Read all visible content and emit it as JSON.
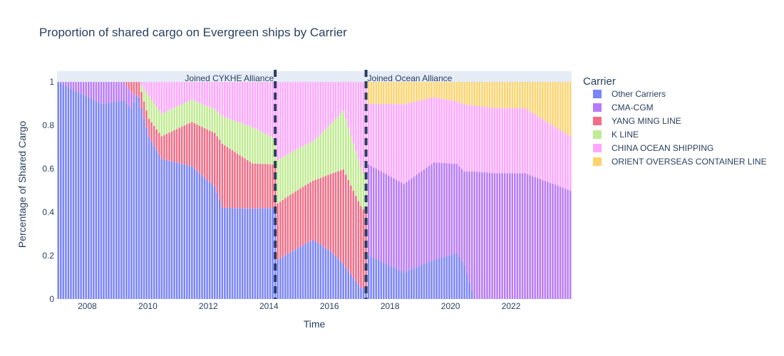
{
  "chart_data": {
    "type": "bar",
    "stacked": true,
    "title": "Proportion of shared cargo on Evergreen ships by Carrier",
    "xlabel": "Time",
    "ylabel": "Percentage of Shared Cargo",
    "xlim": [
      "2007-01",
      "2023-12"
    ],
    "ylim": [
      0,
      1.05
    ],
    "x_ticks": [
      "2008",
      "2010",
      "2012",
      "2014",
      "2016",
      "2018",
      "2020",
      "2022"
    ],
    "y_ticks": [
      "0",
      "0.2",
      "0.4",
      "0.6",
      "0.8",
      "1"
    ],
    "legend_title": "Carrier",
    "legend_position": "right",
    "series": [
      {
        "name": "Other Carriers",
        "color": "#636efa",
        "keypoints": [
          [
            "2007-01",
            1.0
          ],
          [
            "2008-06",
            0.9
          ],
          [
            "2009-06",
            0.92
          ],
          [
            "2009-11",
            0.75
          ],
          [
            "2010-06",
            0.62
          ],
          [
            "2011-06",
            0.6
          ],
          [
            "2012-03",
            0.55
          ],
          [
            "2012-06",
            0.4
          ],
          [
            "2013-06",
            0.4
          ],
          [
            "2014-03",
            0.42
          ],
          [
            "2014-04",
            0.18
          ],
          [
            "2015-06",
            0.3
          ],
          [
            "2016-01",
            0.22
          ],
          [
            "2016-06",
            0.15
          ],
          [
            "2017-01",
            0.05
          ],
          [
            "2017-03",
            0.05
          ],
          [
            "2017-04",
            0.2
          ],
          [
            "2018-06",
            0.12
          ],
          [
            "2019-06",
            0.18
          ],
          [
            "2020-03",
            0.22
          ],
          [
            "2020-06",
            0.15
          ],
          [
            "2020-10",
            0.0
          ],
          [
            "2023-12",
            0.0
          ]
        ]
      },
      {
        "name": "CMA-CGM",
        "color": "#ab63fa",
        "keypoints": [
          [
            "2007-01",
            0.0
          ],
          [
            "2008-06",
            0.1
          ],
          [
            "2009-06",
            0.08
          ],
          [
            "2009-08",
            0.0
          ],
          [
            "2017-03",
            0.0
          ],
          [
            "2017-04",
            0.42
          ],
          [
            "2018-06",
            0.4
          ],
          [
            "2019-06",
            0.45
          ],
          [
            "2020-06",
            0.42
          ],
          [
            "2020-10",
            0.58
          ],
          [
            "2022-06",
            0.58
          ],
          [
            "2023-12",
            0.5
          ]
        ]
      },
      {
        "name": "YANG MING LINE",
        "color": "#ef5573",
        "keypoints": [
          [
            "2007-01",
            0.0
          ],
          [
            "2009-03",
            0.0
          ],
          [
            "2009-06",
            0.05
          ],
          [
            "2010-06",
            0.1
          ],
          [
            "2011-06",
            0.2
          ],
          [
            "2012-06",
            0.28
          ],
          [
            "2013-06",
            0.2
          ],
          [
            "2014-03",
            0.2
          ],
          [
            "2014-04",
            0.26
          ],
          [
            "2015-06",
            0.3
          ],
          [
            "2016-06",
            0.4
          ],
          [
            "2017-03",
            0.35
          ],
          [
            "2017-04",
            0.0
          ],
          [
            "2023-12",
            0.0
          ]
        ]
      },
      {
        "name": "K LINE",
        "color": "#b6e880",
        "keypoints": [
          [
            "2007-01",
            0.0
          ],
          [
            "2009-09",
            0.0
          ],
          [
            "2010-01",
            0.1
          ],
          [
            "2011-06",
            0.1
          ],
          [
            "2012-06",
            0.12
          ],
          [
            "2013-06",
            0.16
          ],
          [
            "2014-03",
            0.12
          ],
          [
            "2014-04",
            0.2
          ],
          [
            "2015-06",
            0.2
          ],
          [
            "2016-06",
            0.25
          ],
          [
            "2017-03",
            0.15
          ],
          [
            "2017-04",
            0.0
          ],
          [
            "2023-12",
            0.0
          ]
        ]
      },
      {
        "name": "CHINA OCEAN SHIPPING",
        "color": "#ff97ff",
        "keypoints": [
          [
            "2007-01",
            0.0
          ],
          [
            "2009-09",
            0.0
          ],
          [
            "2010-06",
            0.14
          ],
          [
            "2011-06",
            0.08
          ],
          [
            "2012-06",
            0.15
          ],
          [
            "2013-06",
            0.2
          ],
          [
            "2014-03",
            0.26
          ],
          [
            "2014-04",
            0.36
          ],
          [
            "2015-06",
            0.3
          ],
          [
            "2016-06",
            0.12
          ],
          [
            "2017-03",
            0.45
          ],
          [
            "2017-04",
            0.28
          ],
          [
            "2018-06",
            0.36
          ],
          [
            "2019-06",
            0.3
          ],
          [
            "2020-06",
            0.3
          ],
          [
            "2022-06",
            0.3
          ],
          [
            "2023-12",
            0.25
          ]
        ]
      },
      {
        "name": "ORIENT OVERSEAS CONTAINER LINE",
        "color": "#fecb52",
        "keypoints": [
          [
            "2007-01",
            0.0
          ],
          [
            "2017-03",
            0.0
          ],
          [
            "2017-04",
            0.1
          ],
          [
            "2018-06",
            0.1
          ],
          [
            "2019-06",
            0.07
          ],
          [
            "2020-06",
            0.1
          ],
          [
            "2021-06",
            0.12
          ],
          [
            "2022-06",
            0.12
          ],
          [
            "2023-12",
            0.25
          ]
        ]
      }
    ],
    "annotations": [
      {
        "date": "2014-03",
        "label": "Joined CYKHE Alliance"
      },
      {
        "date": "2017-03",
        "label": "Joined Ocean Alliance"
      }
    ]
  }
}
